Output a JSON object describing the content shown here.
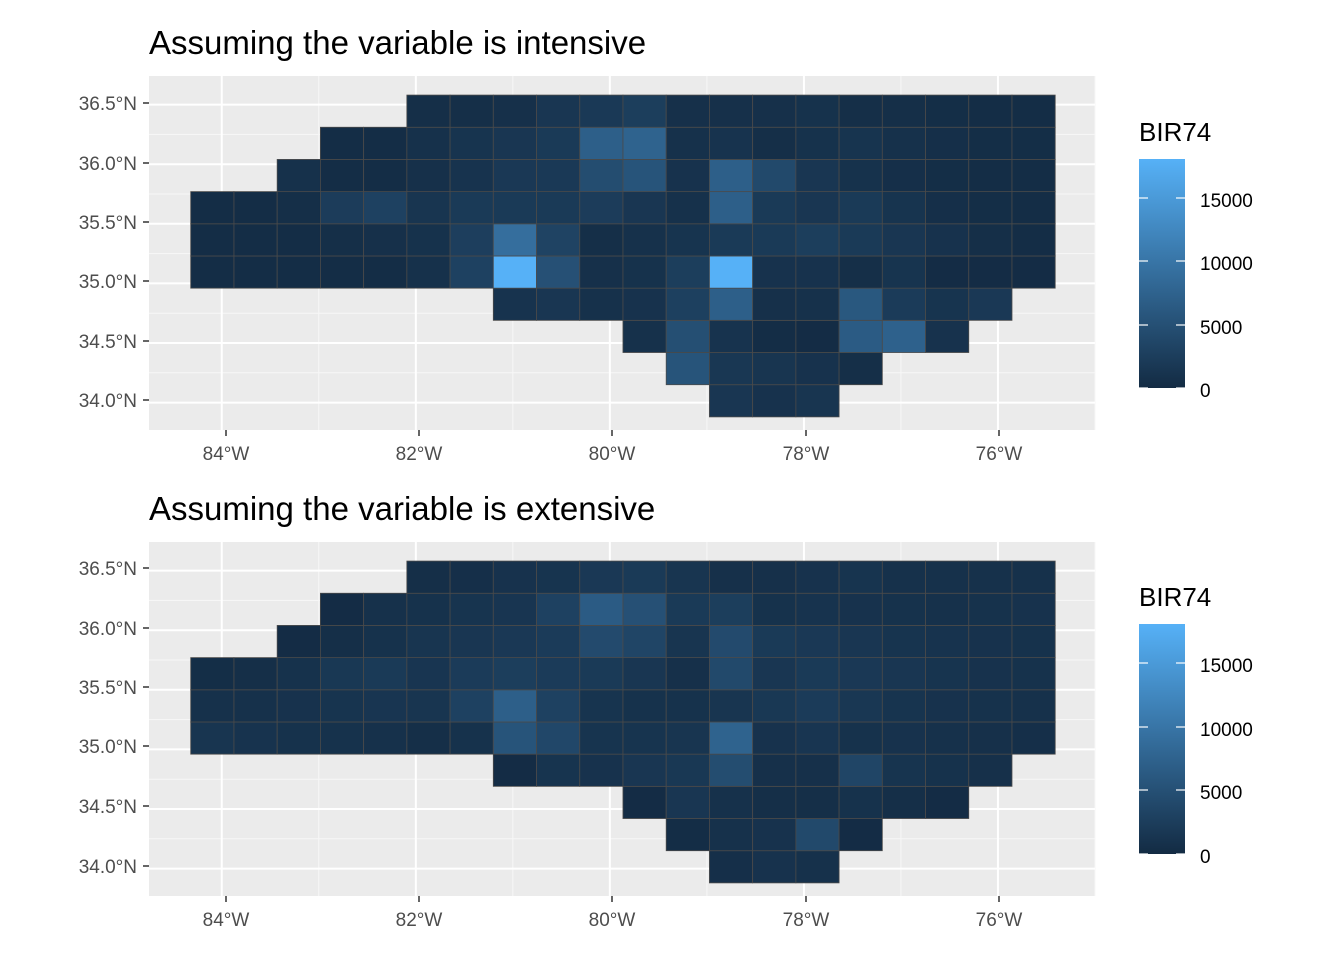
{
  "chart_data": [
    {
      "type": "heatmap",
      "title": "Assuming the variable is intensive",
      "xlabel": "",
      "ylabel": "",
      "x_ticks": [
        "84°W",
        "82°W",
        "80°W",
        "78°W",
        "76°W"
      ],
      "x_tick_values": [
        -84,
        -82,
        -80,
        -78,
        -76
      ],
      "y_ticks": [
        "34.0°N",
        "34.5°N",
        "35.0°N",
        "35.5°N",
        "36.0°N",
        "36.5°N"
      ],
      "y_tick_values": [
        34.0,
        34.5,
        35.0,
        35.5,
        36.0,
        36.5
      ],
      "xlim": [
        -84.75,
        -75.0
      ],
      "ylim": [
        33.77,
        36.74
      ],
      "grid": true,
      "legend": {
        "title": "BIR74",
        "ticks": [
          0,
          5000,
          10000,
          15000
        ],
        "labels": [
          "0",
          "5000",
          "10000",
          "15000"
        ],
        "range": [
          0,
          18000
        ],
        "placement": "right"
      },
      "grid_origin": {
        "lon": -84.32,
        "lat": 33.88
      },
      "cell_size": {
        "dlon": 0.4455,
        "dlat": 0.27
      },
      "rows_from_south": [
        {
          "start_col": 12,
          "values": [
            1500,
            1000,
            1300
          ]
        },
        {
          "start_col": 11,
          "values": [
            5500,
            1600,
            1300,
            1000,
            500
          ]
        },
        {
          "start_col": 10,
          "values": [
            800,
            4800,
            1100,
            300,
            200,
            6500,
            7300,
            1000
          ]
        },
        {
          "start_col": 7,
          "values": [
            1100,
            1500,
            800,
            1000,
            2800,
            7000,
            700,
            800,
            6000,
            2200,
            1200,
            1800
          ]
        },
        {
          "start_col": 0,
          "values": [
            300,
            300,
            300,
            300,
            300,
            800,
            3000,
            18000,
            5000,
            700,
            900,
            2500,
            18000,
            1000,
            1000,
            500,
            1200,
            200,
            200,
            200
          ]
        },
        {
          "start_col": 0,
          "values": [
            300,
            300,
            300,
            500,
            700,
            900,
            2600,
            9000,
            3200,
            500,
            800,
            1200,
            2000,
            2000,
            2500,
            2000,
            1500,
            1000,
            500,
            300
          ]
        },
        {
          "start_col": 0,
          "values": [
            300,
            300,
            500,
            2300,
            3000,
            1300,
            2000,
            2000,
            2000,
            2300,
            1500,
            800,
            7000,
            2000,
            1500,
            2000,
            1200,
            600,
            400,
            300
          ]
        },
        {
          "start_col": 2,
          "values": [
            800,
            300,
            300,
            700,
            1100,
            1800,
            1900,
            4500,
            5500,
            1000,
            7000,
            4000,
            1500,
            900,
            600,
            400,
            300,
            300
          ]
        },
        {
          "start_col": 3,
          "values": [
            300,
            300,
            800,
            1200,
            1500,
            2000,
            7000,
            7500,
            800,
            1100,
            500,
            900,
            1200,
            800,
            600,
            400,
            400
          ]
        },
        {
          "start_col": 5,
          "values": [
            500,
            500,
            700,
            1500,
            1900,
            2500,
            700,
            700,
            700,
            900,
            500,
            500,
            400,
            300,
            300
          ]
        }
      ]
    },
    {
      "type": "heatmap",
      "title": "Assuming the variable is extensive",
      "xlabel": "",
      "ylabel": "",
      "x_ticks": [
        "84°W",
        "82°W",
        "80°W",
        "78°W",
        "76°W"
      ],
      "x_tick_values": [
        -84,
        -82,
        -80,
        -78,
        -76
      ],
      "y_ticks": [
        "34.0°N",
        "34.5°N",
        "35.0°N",
        "35.5°N",
        "36.0°N",
        "36.5°N"
      ],
      "y_tick_values": [
        34.0,
        34.5,
        35.0,
        35.5,
        36.0,
        36.5
      ],
      "xlim": [
        -84.75,
        -75.0
      ],
      "ylim": [
        33.77,
        36.74
      ],
      "grid": true,
      "legend": {
        "title": "BIR74",
        "ticks": [
          0,
          5000,
          10000,
          15000
        ],
        "labels": [
          "0",
          "5000",
          "10000",
          "15000"
        ],
        "range": [
          0,
          18000
        ],
        "placement": "right"
      },
      "grid_origin": {
        "lon": -84.32,
        "lat": 33.88
      },
      "cell_size": {
        "dlon": 0.4455,
        "dlat": 0.27
      },
      "rows_from_south": [
        {
          "start_col": 12,
          "values": [
            600,
            1000,
            800
          ]
        },
        {
          "start_col": 11,
          "values": [
            300,
            800,
            1000,
            4000,
            200
          ]
        },
        {
          "start_col": 10,
          "values": [
            200,
            1500,
            800,
            500,
            500,
            900,
            500,
            200
          ]
        },
        {
          "start_col": 7,
          "values": [
            200,
            1200,
            1000,
            1500,
            1700,
            4500,
            700,
            700,
            3500,
            1200,
            900,
            700
          ]
        },
        {
          "start_col": 0,
          "values": [
            1300,
            1100,
            900,
            900,
            800,
            500,
            900,
            5500,
            3800,
            1200,
            1200,
            1300,
            7500,
            1000,
            1400,
            900,
            1000,
            800,
            700,
            600
          ]
        },
        {
          "start_col": 0,
          "values": [
            800,
            800,
            1000,
            1200,
            1400,
            1300,
            3000,
            7000,
            3000,
            1200,
            900,
            900,
            1300,
            1700,
            2200,
            1600,
            1200,
            1000,
            900,
            800
          ]
        },
        {
          "start_col": 0,
          "values": [
            400,
            500,
            900,
            1700,
            2000,
            1400,
            2200,
            2500,
            2200,
            2000,
            1500,
            700,
            4000,
            1500,
            2000,
            1800,
            1500,
            1200,
            1000,
            900
          ]
        },
        {
          "start_col": 2,
          "values": [
            200,
            500,
            900,
            1300,
            1500,
            1800,
            2200,
            4200,
            3500,
            1300,
            4200,
            2000,
            1800,
            1500,
            1200,
            1100,
            1000,
            900
          ]
        },
        {
          "start_col": 3,
          "values": [
            200,
            800,
            900,
            1200,
            1400,
            3000,
            6500,
            5000,
            2000,
            2500,
            900,
            1100,
            1000,
            900,
            800,
            900,
            1000
          ]
        },
        {
          "start_col": 5,
          "values": [
            500,
            600,
            1000,
            1200,
            1800,
            2000,
            1300,
            700,
            700,
            1000,
            1200,
            800,
            800,
            800,
            800
          ]
        }
      ]
    }
  ]
}
